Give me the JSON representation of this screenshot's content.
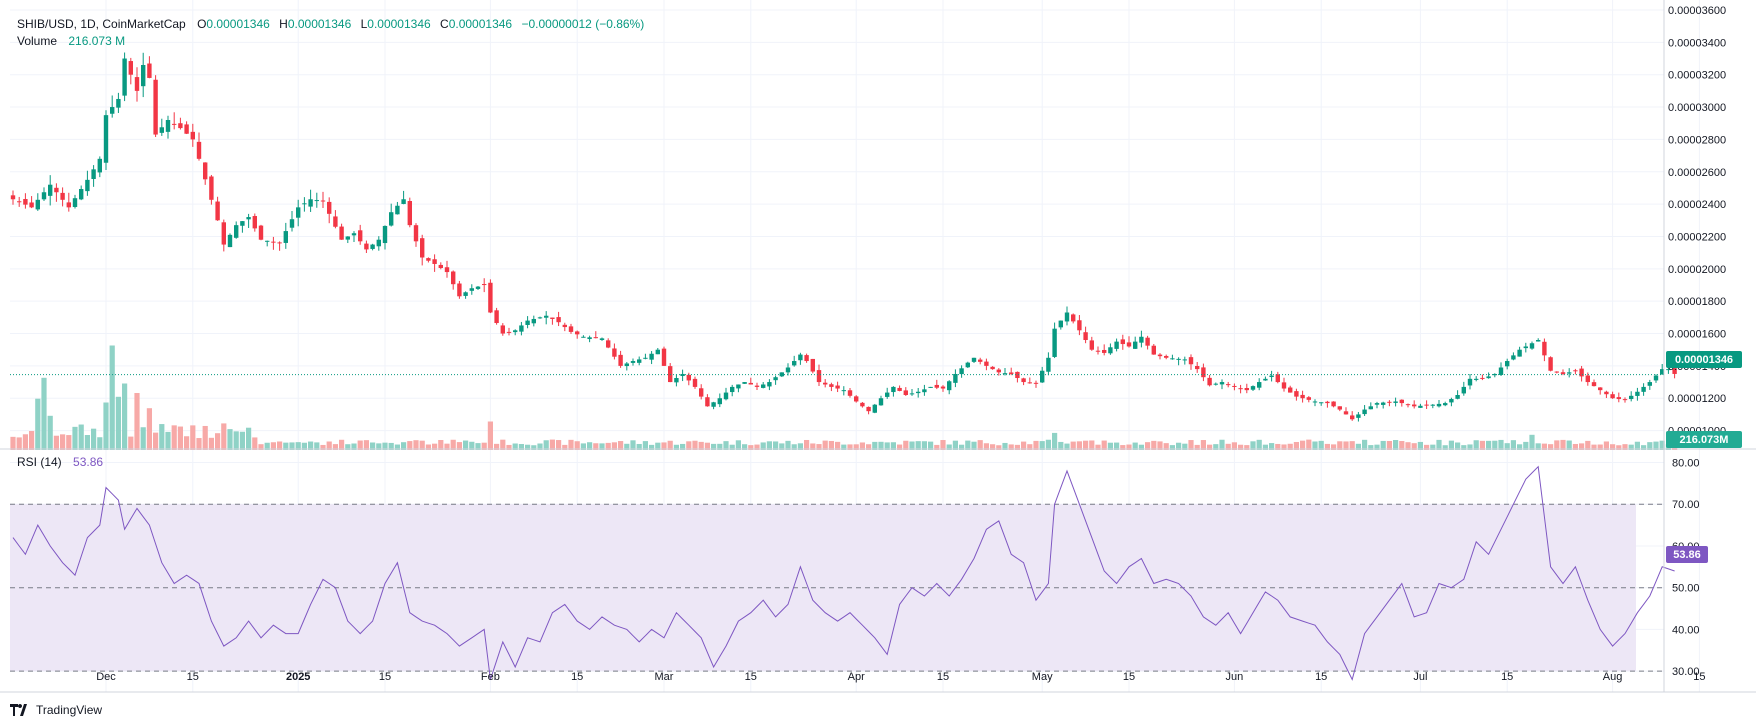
{
  "header": {
    "symbol": "SHIB/USD, 1D, CoinMarketCap",
    "o_label": "O",
    "o": "0.00001346",
    "h_label": "H",
    "h": "0.00001346",
    "l_label": "L",
    "l": "0.00001346",
    "c_label": "C",
    "c": "0.00001346",
    "change": "−0.00000012 (−0.86%)",
    "volume_label": "Volume",
    "volume": "216.073 M"
  },
  "rsi_header": {
    "label": "RSI (14)",
    "value": "53.86"
  },
  "price_tag": "0.00001346",
  "volume_tag": "216.073M",
  "rsi_tag": "53.86",
  "watermark": "TradingView",
  "colors": {
    "up": "#089981",
    "down": "#f23645",
    "up_vol": "#8fd2c6",
    "down_vol": "#f7a9a7",
    "rsi": "#7e57c2",
    "rsi_band": "#ede7f6"
  },
  "chart_data": [
    {
      "type": "candlestick",
      "name": "SHIB/USD",
      "y_ticks": [
        "0.00003600",
        "0.00003400",
        "0.00003200",
        "0.00003000",
        "0.00002800",
        "0.00002600",
        "0.00002400",
        "0.00002200",
        "0.00002000",
        "0.00001800",
        "0.00001600",
        "0.00001400",
        "0.00001200",
        "0.00001000"
      ],
      "y_range": [
        8.8e-06,
        3.6e-05
      ],
      "x_ticks": [
        {
          "label": "Dec",
          "i": 15
        },
        {
          "label": "15",
          "i": 29
        },
        {
          "label": "2025",
          "i": 46
        },
        {
          "label": "15",
          "i": 60
        },
        {
          "label": "Feb",
          "i": 77
        },
        {
          "label": "15",
          "i": 91
        },
        {
          "label": "Mar",
          "i": 105
        },
        {
          "label": "15",
          "i": 119
        },
        {
          "label": "Apr",
          "i": 136
        },
        {
          "label": "15",
          "i": 150
        },
        {
          "label": "May",
          "i": 166
        },
        {
          "label": "15",
          "i": 180
        },
        {
          "label": "Jun",
          "i": 197
        },
        {
          "label": "15",
          "i": 211
        },
        {
          "label": "Jul",
          "i": 227
        },
        {
          "label": "15",
          "i": 241
        },
        {
          "label": "Aug",
          "i": 258
        },
        {
          "label": "15",
          "i": 272
        }
      ],
      "current_price": 1.346e-05,
      "close_anchors": [
        [
          0,
          2.43e-05
        ],
        [
          3,
          2.38e-05
        ],
        [
          6,
          2.52e-05
        ],
        [
          9,
          2.38e-05
        ],
        [
          12,
          2.55e-05
        ],
        [
          14,
          2.68e-05
        ],
        [
          15,
          2.95e-05
        ],
        [
          17,
          3.05e-05
        ],
        [
          18,
          3.3e-05
        ],
        [
          20,
          3.1e-05
        ],
        [
          21,
          3.26e-05
        ],
        [
          22,
          3.18e-05
        ],
        [
          23,
          2.83e-05
        ],
        [
          25,
          2.92e-05
        ],
        [
          27,
          2.87e-05
        ],
        [
          29,
          2.8e-05
        ],
        [
          30,
          2.68e-05
        ],
        [
          33,
          2.3e-05
        ],
        [
          34,
          2.15e-05
        ],
        [
          36,
          2.27e-05
        ],
        [
          38,
          2.32e-05
        ],
        [
          40,
          2.18e-05
        ],
        [
          43,
          2.16e-05
        ],
        [
          46,
          2.38e-05
        ],
        [
          48,
          2.43e-05
        ],
        [
          50,
          2.42e-05
        ],
        [
          53,
          2.18e-05
        ],
        [
          55,
          2.22e-05
        ],
        [
          57,
          2.12e-05
        ],
        [
          59,
          2.18e-05
        ],
        [
          61,
          2.35e-05
        ],
        [
          63,
          2.43e-05
        ],
        [
          64,
          2.27e-05
        ],
        [
          66,
          2.07e-05
        ],
        [
          68,
          2.03e-05
        ],
        [
          70,
          1.98e-05
        ],
        [
          72,
          1.83e-05
        ],
        [
          74,
          1.88e-05
        ],
        [
          76,
          1.9e-05
        ],
        [
          77,
          1.73e-05
        ],
        [
          79,
          1.6e-05
        ],
        [
          81,
          1.62e-05
        ],
        [
          83,
          1.68e-05
        ],
        [
          86,
          1.71e-05
        ],
        [
          88,
          1.67e-05
        ],
        [
          90,
          1.61e-05
        ],
        [
          92,
          1.58e-05
        ],
        [
          95,
          1.57e-05
        ],
        [
          98,
          1.4e-05
        ],
        [
          100,
          1.43e-05
        ],
        [
          102,
          1.45e-05
        ],
        [
          104,
          1.5e-05
        ],
        [
          106,
          1.3e-05
        ],
        [
          108,
          1.35e-05
        ],
        [
          110,
          1.27e-05
        ],
        [
          112,
          1.15e-05
        ],
        [
          114,
          1.2e-05
        ],
        [
          116,
          1.27e-05
        ],
        [
          118,
          1.3e-05
        ],
        [
          120,
          1.27e-05
        ],
        [
          122,
          1.3e-05
        ],
        [
          125,
          1.39e-05
        ],
        [
          127,
          1.47e-05
        ],
        [
          128,
          1.43e-05
        ],
        [
          130,
          1.3e-05
        ],
        [
          132,
          1.27e-05
        ],
        [
          134,
          1.25e-05
        ],
        [
          136,
          1.18e-05
        ],
        [
          138,
          1.12e-05
        ],
        [
          140,
          1.2e-05
        ],
        [
          142,
          1.27e-05
        ],
        [
          144,
          1.22e-05
        ],
        [
          146,
          1.24e-05
        ],
        [
          148,
          1.27e-05
        ],
        [
          150,
          1.26e-05
        ],
        [
          152,
          1.35e-05
        ],
        [
          154,
          1.42e-05
        ],
        [
          155,
          1.45e-05
        ],
        [
          157,
          1.4e-05
        ],
        [
          159,
          1.36e-05
        ],
        [
          161,
          1.35e-05
        ],
        [
          163,
          1.3e-05
        ],
        [
          165,
          1.29e-05
        ],
        [
          167,
          1.45e-05
        ],
        [
          168,
          1.63e-05
        ],
        [
          170,
          1.73e-05
        ],
        [
          172,
          1.62e-05
        ],
        [
          174,
          1.5e-05
        ],
        [
          176,
          1.48e-05
        ],
        [
          178,
          1.55e-05
        ],
        [
          180,
          1.52e-05
        ],
        [
          182,
          1.58e-05
        ],
        [
          184,
          1.47e-05
        ],
        [
          186,
          1.45e-05
        ],
        [
          189,
          1.44e-05
        ],
        [
          191,
          1.38e-05
        ],
        [
          193,
          1.28e-05
        ],
        [
          195,
          1.3e-05
        ],
        [
          197,
          1.27e-05
        ],
        [
          199,
          1.25e-05
        ],
        [
          201,
          1.3e-05
        ],
        [
          203,
          1.34e-05
        ],
        [
          205,
          1.26e-05
        ],
        [
          207,
          1.21e-05
        ],
        [
          210,
          1.18e-05
        ],
        [
          212,
          1.17e-05
        ],
        [
          214,
          1.13e-05
        ],
        [
          216,
          1.07e-05
        ],
        [
          218,
          1.13e-05
        ],
        [
          220,
          1.17e-05
        ],
        [
          223,
          1.18e-05
        ],
        [
          226,
          1.15e-05
        ],
        [
          229,
          1.16e-05
        ],
        [
          231,
          1.17e-05
        ],
        [
          233,
          1.22e-05
        ],
        [
          235,
          1.32e-05
        ],
        [
          237,
          1.32e-05
        ],
        [
          239,
          1.35e-05
        ],
        [
          241,
          1.43e-05
        ],
        [
          243,
          1.5e-05
        ],
        [
          245,
          1.54e-05
        ],
        [
          246,
          1.56e-05
        ],
        [
          248,
          1.37e-05
        ],
        [
          250,
          1.35e-05
        ],
        [
          252,
          1.37e-05
        ],
        [
          254,
          1.3e-05
        ],
        [
          256,
          1.25e-05
        ],
        [
          258,
          1.2e-05
        ],
        [
          260,
          1.19e-05
        ],
        [
          262,
          1.24e-05
        ],
        [
          264,
          1.3e-05
        ],
        [
          266,
          1.38e-05
        ],
        [
          267,
          1.38e-05
        ],
        [
          268,
          1.35e-05
        ]
      ]
    },
    {
      "type": "bar",
      "name": "Volume",
      "values_note_hidden": false,
      "peaks": [
        [
          4,
          0.27
        ],
        [
          5,
          0.38
        ],
        [
          6,
          0.18
        ],
        [
          15,
          0.25
        ],
        [
          16,
          0.55
        ],
        [
          17,
          0.28
        ],
        [
          18,
          0.35
        ],
        [
          20,
          0.3
        ],
        [
          22,
          0.22
        ],
        [
          34,
          0.14
        ],
        [
          77,
          0.15
        ],
        [
          168,
          0.09
        ],
        [
          245,
          0.08
        ]
      ]
    },
    {
      "type": "line",
      "name": "RSI (14)",
      "y_ticks": [
        "80.00",
        "70.00",
        "60.00",
        "50.00",
        "40.00",
        "30.00"
      ],
      "y_range": [
        25,
        83
      ],
      "bands": [
        30,
        50,
        70
      ],
      "rsi_anchors": [
        [
          0,
          62
        ],
        [
          2,
          58
        ],
        [
          4,
          65
        ],
        [
          6,
          60
        ],
        [
          8,
          56
        ],
        [
          10,
          53
        ],
        [
          12,
          62
        ],
        [
          14,
          65
        ],
        [
          15,
          74
        ],
        [
          17,
          71
        ],
        [
          18,
          64
        ],
        [
          20,
          69
        ],
        [
          22,
          65
        ],
        [
          24,
          56
        ],
        [
          26,
          51
        ],
        [
          28,
          53
        ],
        [
          30,
          51
        ],
        [
          32,
          42
        ],
        [
          34,
          36
        ],
        [
          36,
          38
        ],
        [
          38,
          42
        ],
        [
          40,
          38
        ],
        [
          42,
          41
        ],
        [
          44,
          39
        ],
        [
          46,
          39
        ],
        [
          48,
          46
        ],
        [
          50,
          52
        ],
        [
          52,
          50
        ],
        [
          54,
          42
        ],
        [
          56,
          39
        ],
        [
          58,
          42
        ],
        [
          60,
          51
        ],
        [
          62,
          56
        ],
        [
          64,
          44
        ],
        [
          66,
          42
        ],
        [
          68,
          41
        ],
        [
          70,
          39
        ],
        [
          72,
          36
        ],
        [
          74,
          38
        ],
        [
          76,
          40
        ],
        [
          77,
          28
        ],
        [
          79,
          37
        ],
        [
          81,
          31
        ],
        [
          83,
          38
        ],
        [
          85,
          37
        ],
        [
          87,
          44
        ],
        [
          89,
          46
        ],
        [
          91,
          42
        ],
        [
          93,
          40
        ],
        [
          95,
          43
        ],
        [
          97,
          41
        ],
        [
          99,
          40
        ],
        [
          101,
          37
        ],
        [
          103,
          40
        ],
        [
          105,
          38
        ],
        [
          107,
          44
        ],
        [
          109,
          41
        ],
        [
          111,
          38
        ],
        [
          113,
          31
        ],
        [
          115,
          36
        ],
        [
          117,
          42
        ],
        [
          119,
          44
        ],
        [
          121,
          47
        ],
        [
          123,
          43
        ],
        [
          125,
          46
        ],
        [
          127,
          55
        ],
        [
          129,
          47
        ],
        [
          131,
          44
        ],
        [
          133,
          42
        ],
        [
          135,
          44
        ],
        [
          137,
          41
        ],
        [
          139,
          38
        ],
        [
          141,
          34
        ],
        [
          143,
          46
        ],
        [
          145,
          50
        ],
        [
          147,
          48
        ],
        [
          149,
          51
        ],
        [
          151,
          48
        ],
        [
          153,
          52
        ],
        [
          155,
          57
        ],
        [
          157,
          64
        ],
        [
          159,
          66
        ],
        [
          161,
          58
        ],
        [
          163,
          56
        ],
        [
          165,
          47
        ],
        [
          167,
          51
        ],
        [
          168,
          70
        ],
        [
          170,
          78
        ],
        [
          172,
          70
        ],
        [
          174,
          62
        ],
        [
          176,
          54
        ],
        [
          178,
          51
        ],
        [
          180,
          55
        ],
        [
          182,
          57
        ],
        [
          184,
          51
        ],
        [
          186,
          52
        ],
        [
          188,
          51
        ],
        [
          190,
          48
        ],
        [
          192,
          43
        ],
        [
          194,
          41
        ],
        [
          196,
          44
        ],
        [
          198,
          39
        ],
        [
          200,
          44
        ],
        [
          202,
          49
        ],
        [
          204,
          47
        ],
        [
          206,
          43
        ],
        [
          208,
          42
        ],
        [
          210,
          41
        ],
        [
          212,
          37
        ],
        [
          214,
          34
        ],
        [
          216,
          28
        ],
        [
          218,
          39
        ],
        [
          220,
          43
        ],
        [
          222,
          47
        ],
        [
          224,
          51
        ],
        [
          226,
          43
        ],
        [
          228,
          44
        ],
        [
          230,
          51
        ],
        [
          232,
          50
        ],
        [
          234,
          52
        ],
        [
          236,
          61
        ],
        [
          238,
          58
        ],
        [
          240,
          64
        ],
        [
          242,
          70
        ],
        [
          244,
          76
        ],
        [
          246,
          79
        ],
        [
          248,
          55
        ],
        [
          250,
          51
        ],
        [
          252,
          55
        ],
        [
          254,
          47
        ],
        [
          256,
          40
        ],
        [
          258,
          36
        ],
        [
          260,
          39
        ],
        [
          262,
          44
        ],
        [
          264,
          48
        ],
        [
          266,
          55
        ],
        [
          268,
          54
        ]
      ]
    }
  ]
}
